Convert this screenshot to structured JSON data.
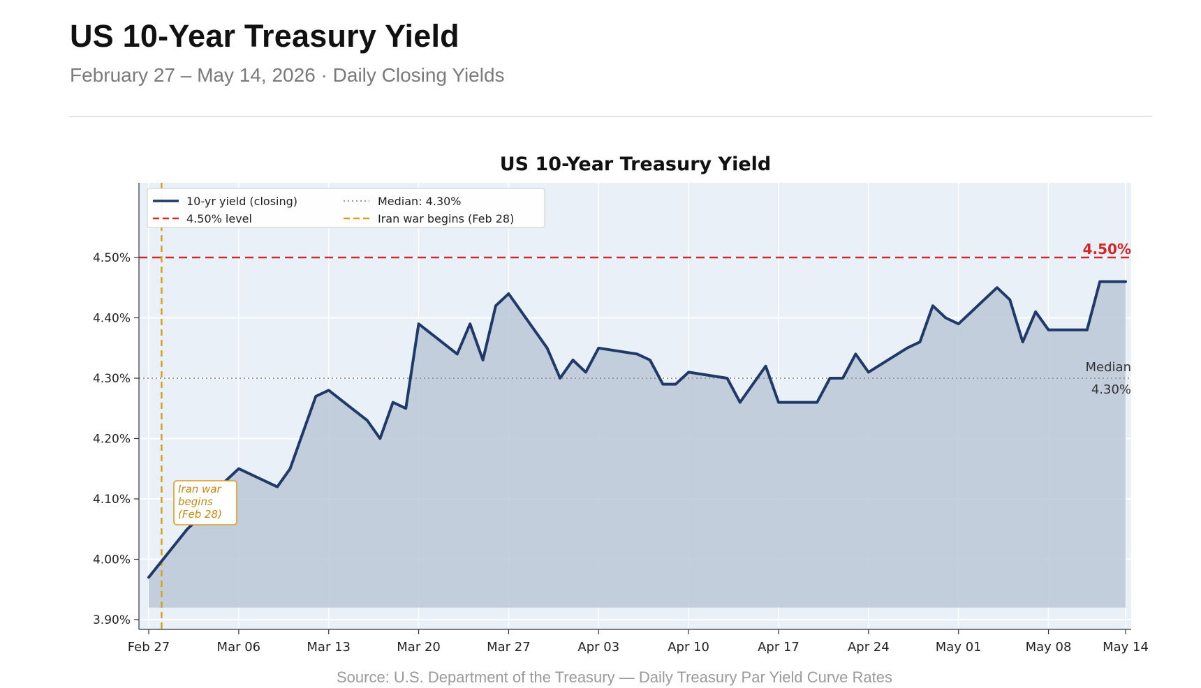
{
  "header": {
    "title": "US 10-Year Treasury Yield",
    "subtitle": "February 27 – May 14, 2026 · Daily Closing Yields"
  },
  "source_note": "Source: U.S. Department of the Treasury — Daily Treasury Par Yield Curve Rates",
  "colors": {
    "line": "#1f3a68",
    "area": "#bfcad9",
    "plot_bg": "#eaf0f8",
    "threshold": "#d62728",
    "median": "#999999",
    "event": "#d99e1a"
  },
  "chart_data": {
    "type": "line",
    "title": "US 10-Year Treasury Yield",
    "xlabel": "",
    "ylabel": "",
    "ylim": [
      3.88,
      4.62
    ],
    "grid": true,
    "legend_position": "top-left",
    "y_ticks": [
      "3.90%",
      "4.00%",
      "4.10%",
      "4.20%",
      "4.30%",
      "4.40%",
      "4.50%"
    ],
    "x_ticks": [
      {
        "date": "2026-02-27",
        "label": "Feb 27"
      },
      {
        "date": "2026-03-06",
        "label": "Mar 06"
      },
      {
        "date": "2026-03-13",
        "label": "Mar 13"
      },
      {
        "date": "2026-03-20",
        "label": "Mar 20"
      },
      {
        "date": "2026-03-27",
        "label": "Mar 27"
      },
      {
        "date": "2026-04-03",
        "label": "Apr 03"
      },
      {
        "date": "2026-04-10",
        "label": "Apr 10"
      },
      {
        "date": "2026-04-17",
        "label": "Apr 17"
      },
      {
        "date": "2026-04-24",
        "label": "Apr 24"
      },
      {
        "date": "2026-05-01",
        "label": "May 01"
      },
      {
        "date": "2026-05-08",
        "label": "May 08"
      },
      {
        "date": "2026-05-14",
        "label": "May 14"
      }
    ],
    "series": [
      {
        "name": "10-yr yield (closing)",
        "x": [
          "2026-02-27",
          "2026-03-02",
          "2026-03-03",
          "2026-03-04",
          "2026-03-05",
          "2026-03-06",
          "2026-03-09",
          "2026-03-10",
          "2026-03-11",
          "2026-03-12",
          "2026-03-13",
          "2026-03-16",
          "2026-03-17",
          "2026-03-18",
          "2026-03-19",
          "2026-03-20",
          "2026-03-23",
          "2026-03-24",
          "2026-03-25",
          "2026-03-26",
          "2026-03-27",
          "2026-03-30",
          "2026-03-31",
          "2026-04-01",
          "2026-04-02",
          "2026-04-03",
          "2026-04-06",
          "2026-04-07",
          "2026-04-08",
          "2026-04-09",
          "2026-04-10",
          "2026-04-13",
          "2026-04-14",
          "2026-04-15",
          "2026-04-16",
          "2026-04-17",
          "2026-04-20",
          "2026-04-21",
          "2026-04-22",
          "2026-04-23",
          "2026-04-24",
          "2026-04-27",
          "2026-04-28",
          "2026-04-29",
          "2026-04-30",
          "2026-05-01",
          "2026-05-04",
          "2026-05-05",
          "2026-05-06",
          "2026-05-07",
          "2026-05-08",
          "2026-05-11",
          "2026-05-12",
          "2026-05-13",
          "2026-05-14"
        ],
        "values": [
          3.97,
          4.05,
          4.07,
          4.1,
          4.13,
          4.15,
          4.12,
          4.15,
          4.21,
          4.27,
          4.28,
          4.23,
          4.2,
          4.26,
          4.25,
          4.39,
          4.34,
          4.39,
          4.33,
          4.42,
          4.44,
          4.35,
          4.3,
          4.33,
          4.31,
          4.35,
          4.34,
          4.33,
          4.29,
          4.29,
          4.31,
          4.3,
          4.26,
          4.29,
          4.32,
          4.26,
          4.26,
          4.3,
          4.3,
          4.34,
          4.31,
          4.35,
          4.36,
          4.42,
          4.4,
          4.39,
          4.45,
          4.43,
          4.36,
          4.41,
          4.38,
          4.38,
          4.46,
          4.46,
          4.46
        ]
      }
    ],
    "reference_lines": {
      "threshold": {
        "value": 4.5,
        "legend": "4.50% level",
        "label": "4.50%"
      },
      "median": {
        "value": 4.3,
        "legend": "Median: 4.30%",
        "label_line1": "Median",
        "label_line2": "4.30%"
      },
      "event": {
        "date": "2026-02-28",
        "legend": "Iran war begins (Feb 28)",
        "annotation": [
          "Iran war",
          "begins",
          "(Feb 28)"
        ]
      }
    },
    "area_baseline": 3.92
  }
}
